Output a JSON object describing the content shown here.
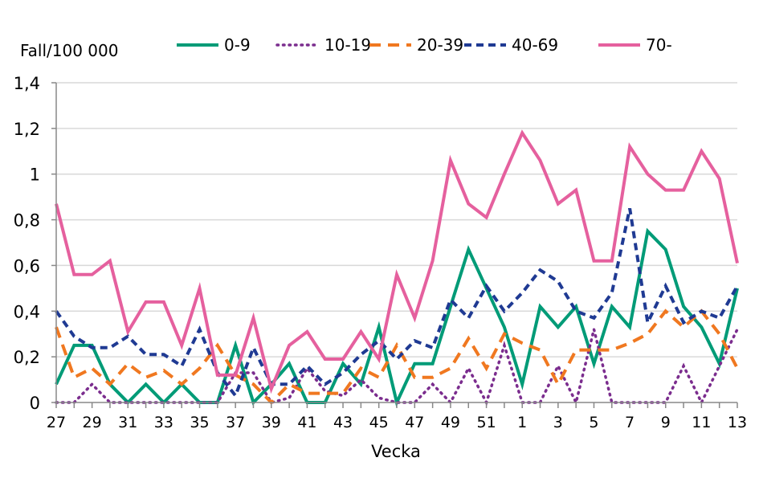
{
  "chart_data": {
    "type": "line",
    "title": "",
    "ylabel": "Fall/100 000",
    "xlabel": "Vecka",
    "ylim": [
      0,
      1.4
    ],
    "yticks": [
      "0",
      "0,2",
      "0,4",
      "0,6",
      "0,8",
      "1",
      "1,2",
      "1,4"
    ],
    "grid": true,
    "legend_position": "top",
    "x": [
      27,
      28,
      29,
      30,
      31,
      32,
      33,
      34,
      35,
      36,
      37,
      38,
      39,
      40,
      41,
      42,
      43,
      44,
      45,
      46,
      47,
      48,
      49,
      50,
      51,
      52,
      1,
      2,
      3,
      4,
      5,
      6,
      7,
      8,
      9,
      10,
      11,
      12,
      13
    ],
    "xtick_labels": [
      "27",
      "29",
      "31",
      "33",
      "35",
      "37",
      "39",
      "41",
      "43",
      "45",
      "47",
      "49",
      "51",
      "1",
      "3",
      "5",
      "7",
      "9",
      "11",
      "13"
    ],
    "series": [
      {
        "name": "0-9",
        "color": "#009B77",
        "style": "solid",
        "values": [
          0.08,
          0.25,
          0.25,
          0.08,
          0,
          0.08,
          0,
          0.08,
          0,
          0,
          0.25,
          0,
          0.08,
          0.17,
          0,
          0,
          0.17,
          0.08,
          0.33,
          0,
          0.17,
          0.17,
          0.42,
          0.67,
          0.5,
          0.33,
          0.08,
          0.42,
          0.33,
          0.42,
          0.17,
          0.42,
          0.33,
          0.75,
          0.67,
          0.42,
          0.33,
          0.17,
          0.5
        ]
      },
      {
        "name": "10-19",
        "color": "#7B2D8E",
        "style": "dotted",
        "values": [
          0,
          0,
          0.08,
          0,
          0,
          0,
          0,
          0,
          0,
          0,
          0.13,
          0.13,
          0,
          0.02,
          0.15,
          0.05,
          0.03,
          0.1,
          0.02,
          0,
          0,
          0.08,
          0,
          0.15,
          0,
          0.25,
          0,
          0,
          0.16,
          0,
          0.32,
          0,
          0,
          0,
          0,
          0.16,
          0,
          0.16,
          0.32
        ]
      },
      {
        "name": "20-39",
        "color": "#F07820",
        "style": "dashed",
        "values": [
          0.33,
          0.11,
          0.15,
          0.08,
          0.17,
          0.11,
          0.14,
          0.08,
          0.15,
          0.25,
          0.12,
          0.08,
          0,
          0.08,
          0.04,
          0.04,
          0.04,
          0.15,
          0.11,
          0.25,
          0.11,
          0.11,
          0.15,
          0.28,
          0.15,
          0.3,
          0.26,
          0.23,
          0.08,
          0.23,
          0.23,
          0.23,
          0.26,
          0.3,
          0.4,
          0.33,
          0.4,
          0.3,
          0.15
        ]
      },
      {
        "name": "40-69",
        "color": "#1F3A93",
        "style": "short-dashed",
        "values": [
          0.4,
          0.29,
          0.24,
          0.24,
          0.29,
          0.21,
          0.21,
          0.16,
          0.32,
          0.13,
          0.03,
          0.24,
          0.08,
          0.08,
          0.16,
          0.08,
          0.13,
          0.21,
          0.27,
          0.19,
          0.27,
          0.24,
          0.45,
          0.37,
          0.51,
          0.4,
          0.48,
          0.58,
          0.53,
          0.4,
          0.37,
          0.48,
          0.85,
          0.35,
          0.51,
          0.35,
          0.4,
          0.37,
          0.51
        ]
      },
      {
        "name": "70-",
        "color": "#E5609E",
        "style": "solid",
        "values": [
          0.87,
          0.56,
          0.56,
          0.62,
          0.31,
          0.44,
          0.44,
          0.25,
          0.5,
          0.12,
          0.12,
          0.37,
          0.06,
          0.25,
          0.31,
          0.19,
          0.19,
          0.31,
          0.19,
          0.56,
          0.37,
          0.62,
          1.06,
          0.87,
          0.81,
          1.0,
          1.18,
          1.06,
          0.87,
          0.93,
          0.62,
          0.62,
          1.12,
          1.0,
          0.93,
          0.93,
          1.1,
          0.98,
          0.61
        ]
      }
    ]
  }
}
